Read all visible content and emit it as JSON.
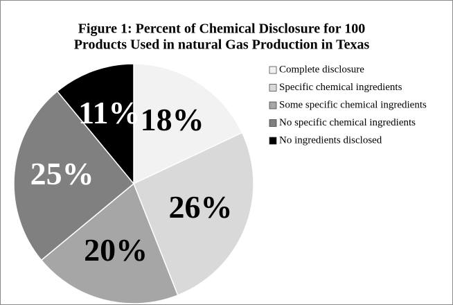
{
  "chart_data": {
    "type": "pie",
    "title": [
      "Figure 1: Percent of Chemical Disclosure for 100",
      "Products Used in natural Gas Production in Texas"
    ],
    "categories": [
      "Complete disclosure",
      "Specific chemical  ingredients",
      "Some specific chemical ingredients",
      "No specific chemical ingredients",
      "No ingredients disclosed"
    ],
    "values": [
      18,
      26,
      20,
      25,
      11
    ],
    "value_labels": [
      "18%",
      "26%",
      "20%",
      "25%",
      "11%"
    ],
    "colors": [
      "#f2f2f2",
      "#d9d9d9",
      "#a6a6a6",
      "#808080",
      "#000000"
    ],
    "label_colors": [
      "#000000",
      "#000000",
      "#000000",
      "#ffffff",
      "#ffffff"
    ],
    "legend": "right"
  }
}
